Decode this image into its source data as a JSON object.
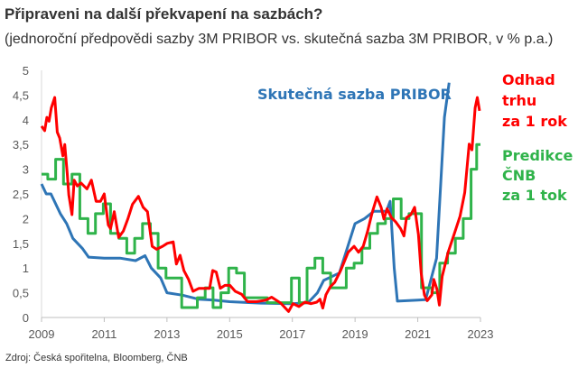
{
  "title": "Připraveni na další překvapení na sazbách?",
  "subtitle": "(jednoroční předpovědi sazby 3M PRIBOR vs. skutečná sazba 3M PRIBOR, v % p.a.)",
  "source": "Zdroj: Česká spořitelna, Bloomberg, ČNB",
  "chart_data": {
    "type": "line",
    "title": "Připraveni na další překvapení na sazbách?",
    "xlabel": "",
    "ylabel": "",
    "xlim": [
      2009,
      2023
    ],
    "ylim": [
      0,
      5
    ],
    "grid": false,
    "legend": "direct labels at right",
    "x_ticks": [
      "2009",
      "2011",
      "2013",
      "2015",
      "2017",
      "2019",
      "2021",
      "2023"
    ],
    "y_ticks": [
      "0",
      "0,5",
      "1",
      "1,5",
      "2",
      "2,5",
      "3",
      "3,5",
      "4",
      "4,5",
      "5"
    ],
    "series": [
      {
        "name": "Skutečná sazba PRIBOR",
        "color": "#2e75b6",
        "points": [
          [
            2009.0,
            2.7
          ],
          [
            2009.15,
            2.5
          ],
          [
            2009.3,
            2.5
          ],
          [
            2009.6,
            2.1
          ],
          [
            2009.8,
            1.9
          ],
          [
            2010.0,
            1.6
          ],
          [
            2010.3,
            1.4
          ],
          [
            2010.5,
            1.22
          ],
          [
            2011.0,
            1.2
          ],
          [
            2011.5,
            1.2
          ],
          [
            2012.0,
            1.15
          ],
          [
            2012.3,
            1.25
          ],
          [
            2012.5,
            1.0
          ],
          [
            2012.8,
            0.8
          ],
          [
            2013.0,
            0.5
          ],
          [
            2013.5,
            0.45
          ],
          [
            2014.0,
            0.37
          ],
          [
            2014.5,
            0.35
          ],
          [
            2015.0,
            0.32
          ],
          [
            2016.0,
            0.29
          ],
          [
            2017.0,
            0.28
          ],
          [
            2017.5,
            0.3
          ],
          [
            2017.8,
            0.5
          ],
          [
            2018.0,
            0.75
          ],
          [
            2018.5,
            0.9
          ],
          [
            2018.8,
            1.5
          ],
          [
            2019.0,
            1.9
          ],
          [
            2019.3,
            2.0
          ],
          [
            2019.6,
            2.15
          ],
          [
            2020.0,
            2.15
          ],
          [
            2020.12,
            2.35
          ],
          [
            2020.25,
            1.0
          ],
          [
            2020.35,
            0.33
          ],
          [
            2021.0,
            0.35
          ],
          [
            2021.25,
            0.36
          ],
          [
            2021.6,
            1.2
          ],
          [
            2021.85,
            4.05
          ],
          [
            2022.0,
            4.75
          ]
        ]
      },
      {
        "name": "Odhad trhu za 1 rok",
        "color": "#ff0000",
        "points": [
          [
            2009.0,
            3.87
          ],
          [
            2009.1,
            3.78
          ],
          [
            2009.17,
            4.05
          ],
          [
            2009.24,
            3.97
          ],
          [
            2009.31,
            4.24
          ],
          [
            2009.42,
            4.45
          ],
          [
            2009.5,
            3.75
          ],
          [
            2009.58,
            3.63
          ],
          [
            2009.68,
            3.27
          ],
          [
            2009.74,
            3.5
          ],
          [
            2009.82,
            2.9
          ],
          [
            2009.87,
            2.48
          ],
          [
            2009.97,
            2.08
          ],
          [
            2010.04,
            2.78
          ],
          [
            2010.14,
            2.66
          ],
          [
            2010.26,
            2.72
          ],
          [
            2010.45,
            2.6
          ],
          [
            2010.59,
            2.78
          ],
          [
            2010.74,
            2.35
          ],
          [
            2010.88,
            2.35
          ],
          [
            2011.0,
            2.5
          ],
          [
            2011.13,
            1.87
          ],
          [
            2011.2,
            1.8
          ],
          [
            2011.32,
            2.14
          ],
          [
            2011.46,
            1.62
          ],
          [
            2011.61,
            1.75
          ],
          [
            2011.75,
            1.99
          ],
          [
            2011.9,
            2.29
          ],
          [
            2012.09,
            2.45
          ],
          [
            2012.24,
            2.23
          ],
          [
            2012.38,
            2.14
          ],
          [
            2012.53,
            1.44
          ],
          [
            2012.67,
            1.38
          ],
          [
            2012.86,
            1.44
          ],
          [
            2013.01,
            1.5
          ],
          [
            2013.2,
            1.53
          ],
          [
            2013.3,
            1.08
          ],
          [
            2013.42,
            1.26
          ],
          [
            2013.54,
            0.95
          ],
          [
            2013.69,
            0.77
          ],
          [
            2013.83,
            0.53
          ],
          [
            2014.02,
            0.59
          ],
          [
            2014.22,
            0.59
          ],
          [
            2014.36,
            0.59
          ],
          [
            2014.46,
            0.95
          ],
          [
            2014.57,
            0.92
          ],
          [
            2014.7,
            0.59
          ],
          [
            2014.85,
            0.65
          ],
          [
            2015.01,
            0.65
          ],
          [
            2015.18,
            0.53
          ],
          [
            2015.38,
            0.47
          ],
          [
            2015.57,
            0.32
          ],
          [
            2015.86,
            0.32
          ],
          [
            2016.15,
            0.35
          ],
          [
            2016.34,
            0.41
          ],
          [
            2016.63,
            0.29
          ],
          [
            2016.88,
            0.12
          ],
          [
            2017.02,
            0.28
          ],
          [
            2017.21,
            0.22
          ],
          [
            2017.4,
            0.31
          ],
          [
            2017.59,
            0.28
          ],
          [
            2017.78,
            0.31
          ],
          [
            2017.88,
            0.37
          ],
          [
            2017.97,
            0.19
          ],
          [
            2018.07,
            0.46
          ],
          [
            2018.21,
            0.62
          ],
          [
            2018.35,
            0.71
          ],
          [
            2018.54,
            0.95
          ],
          [
            2018.78,
            1.32
          ],
          [
            2018.97,
            1.44
          ],
          [
            2019.11,
            1.32
          ],
          [
            2019.26,
            1.44
          ],
          [
            2019.4,
            1.74
          ],
          [
            2019.54,
            2.11
          ],
          [
            2019.7,
            2.44
          ],
          [
            2019.83,
            2.23
          ],
          [
            2019.92,
            1.99
          ],
          [
            2020.02,
            2.2
          ],
          [
            2020.16,
            2.02
          ],
          [
            2020.3,
            1.93
          ],
          [
            2020.45,
            1.8
          ],
          [
            2020.56,
            1.65
          ],
          [
            2020.64,
            2.02
          ],
          [
            2020.78,
            2.08
          ],
          [
            2020.9,
            2.23
          ],
          [
            2021.02,
            1.68
          ],
          [
            2021.11,
            0.89
          ],
          [
            2021.21,
            0.46
          ],
          [
            2021.3,
            0.34
          ],
          [
            2021.45,
            0.46
          ],
          [
            2021.51,
            0.77
          ],
          [
            2021.61,
            0.58
          ],
          [
            2021.69,
            0.25
          ],
          [
            2021.78,
            0.83
          ],
          [
            2021.97,
            1.32
          ],
          [
            2022.16,
            1.68
          ],
          [
            2022.35,
            2.05
          ],
          [
            2022.5,
            2.53
          ],
          [
            2022.64,
            3.51
          ],
          [
            2022.73,
            3.39
          ],
          [
            2022.83,
            4.24
          ],
          [
            2022.9,
            4.45
          ],
          [
            2022.97,
            4.18
          ]
        ]
      },
      {
        "name": "Predikce ČNB za 1 tok",
        "color": "#2fb34a",
        "step": true,
        "points": [
          [
            2009.0,
            2.9
          ],
          [
            2009.2,
            2.8
          ],
          [
            2009.45,
            3.2
          ],
          [
            2009.7,
            2.7
          ],
          [
            2009.97,
            2.9
          ],
          [
            2010.22,
            2.0
          ],
          [
            2010.48,
            1.7
          ],
          [
            2010.72,
            2.1
          ],
          [
            2010.97,
            2.3
          ],
          [
            2011.2,
            1.7
          ],
          [
            2011.47,
            1.6
          ],
          [
            2011.72,
            1.3
          ],
          [
            2011.97,
            1.6
          ],
          [
            2012.22,
            1.9
          ],
          [
            2012.47,
            1.7
          ],
          [
            2012.72,
            1.0
          ],
          [
            2012.97,
            0.8
          ],
          [
            2013.47,
            0.2
          ],
          [
            2013.97,
            0.4
          ],
          [
            2014.22,
            0.6
          ],
          [
            2014.47,
            0.2
          ],
          [
            2014.72,
            0.5
          ],
          [
            2014.97,
            1.0
          ],
          [
            2015.22,
            0.9
          ],
          [
            2015.47,
            0.4
          ],
          [
            2016.2,
            0.3
          ],
          [
            2016.97,
            0.8
          ],
          [
            2017.22,
            0.3
          ],
          [
            2017.47,
            1.0
          ],
          [
            2017.72,
            1.2
          ],
          [
            2017.97,
            0.9
          ],
          [
            2018.22,
            0.6
          ],
          [
            2018.47,
            0.6
          ],
          [
            2018.72,
            1.0
          ],
          [
            2018.97,
            1.1
          ],
          [
            2019.22,
            1.4
          ],
          [
            2019.47,
            1.7
          ],
          [
            2019.72,
            1.9
          ],
          [
            2019.97,
            2.0
          ],
          [
            2020.22,
            2.4
          ],
          [
            2020.47,
            2.0
          ],
          [
            2020.72,
            2.1
          ],
          [
            2021.12,
            0.6
          ],
          [
            2021.45,
            0.5
          ],
          [
            2021.7,
            1.1
          ],
          [
            2021.95,
            1.3
          ],
          [
            2022.2,
            1.6
          ],
          [
            2022.45,
            2.0
          ],
          [
            2022.7,
            3.0
          ],
          [
            2022.88,
            3.5
          ],
          [
            2023.0,
            3.5
          ]
        ]
      }
    ],
    "annotations": [
      {
        "text": "Skutečná sazba PRIBOR",
        "color": "#2e75b6"
      },
      {
        "lines": [
          "Odhad",
          "trhu",
          "za 1 rok"
        ],
        "color": "#ff0000"
      },
      {
        "lines": [
          "Predikce",
          "ČNB",
          "za 1 tok"
        ],
        "color": "#2fb34a"
      }
    ]
  }
}
